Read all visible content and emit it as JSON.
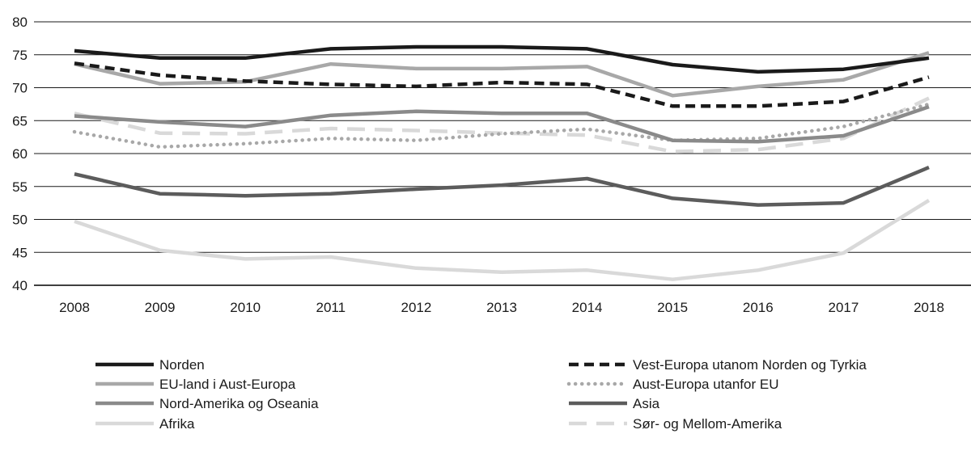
{
  "chart_data": {
    "type": "line",
    "title": "",
    "xlabel": "",
    "ylabel": "",
    "categories": [
      "2008",
      "2009",
      "2010",
      "2011",
      "2012",
      "2013",
      "2014",
      "2015",
      "2016",
      "2017",
      "2018"
    ],
    "ylim": [
      40,
      80
    ],
    "yticks": [
      40,
      45,
      50,
      55,
      60,
      65,
      70,
      75,
      80
    ],
    "grid": "horizontal",
    "legend_position": "bottom",
    "series": [
      {
        "name": "Norden",
        "color": "#1a1a1a",
        "style": "solid",
        "values": [
          75.6,
          74.5,
          74.5,
          75.9,
          76.2,
          76.2,
          75.9,
          73.5,
          72.4,
          72.8,
          74.5
        ]
      },
      {
        "name": "Vest-Europa utanom Norden og Tyrkia",
        "color": "#1a1a1a",
        "style": "dashed",
        "values": [
          73.7,
          71.9,
          71.0,
          70.5,
          70.2,
          70.8,
          70.5,
          67.2,
          67.2,
          67.9,
          71.6
        ]
      },
      {
        "name": "EU-land i Aust-Europa",
        "color": "#a8a8a8",
        "style": "solid",
        "values": [
          73.6,
          70.6,
          70.9,
          73.6,
          72.9,
          72.9,
          73.2,
          68.8,
          70.2,
          71.2,
          75.3
        ]
      },
      {
        "name": "Aust-Europa utanfor EU",
        "color": "#a8a8a8",
        "style": "dotted",
        "values": [
          63.3,
          61.0,
          61.5,
          62.3,
          62.0,
          63.0,
          63.7,
          62.0,
          62.3,
          64.1,
          67.5
        ]
      },
      {
        "name": "Nord-Amerika og Oseania",
        "color": "#8a8a8a",
        "style": "solid",
        "values": [
          65.7,
          64.8,
          64.1,
          65.8,
          66.4,
          66.1,
          66.1,
          62.0,
          61.8,
          62.7,
          67.1
        ]
      },
      {
        "name": "Asia",
        "color": "#5c5c5c",
        "style": "solid",
        "values": [
          56.9,
          53.9,
          53.6,
          53.9,
          54.6,
          55.2,
          56.2,
          53.2,
          52.2,
          52.5,
          57.9
        ]
      },
      {
        "name": "Afrika",
        "color": "#d9d9d9",
        "style": "solid",
        "values": [
          49.7,
          45.3,
          44.0,
          44.3,
          42.6,
          42.0,
          42.3,
          40.9,
          42.3,
          44.9,
          52.9
        ]
      },
      {
        "name": "Sør- og Mellom-Amerika",
        "color": "#d9d9d9",
        "style": "dashed",
        "values": [
          66.1,
          63.1,
          63.0,
          63.8,
          63.5,
          63.1,
          62.8,
          60.3,
          60.6,
          62.3,
          68.4
        ]
      }
    ]
  }
}
